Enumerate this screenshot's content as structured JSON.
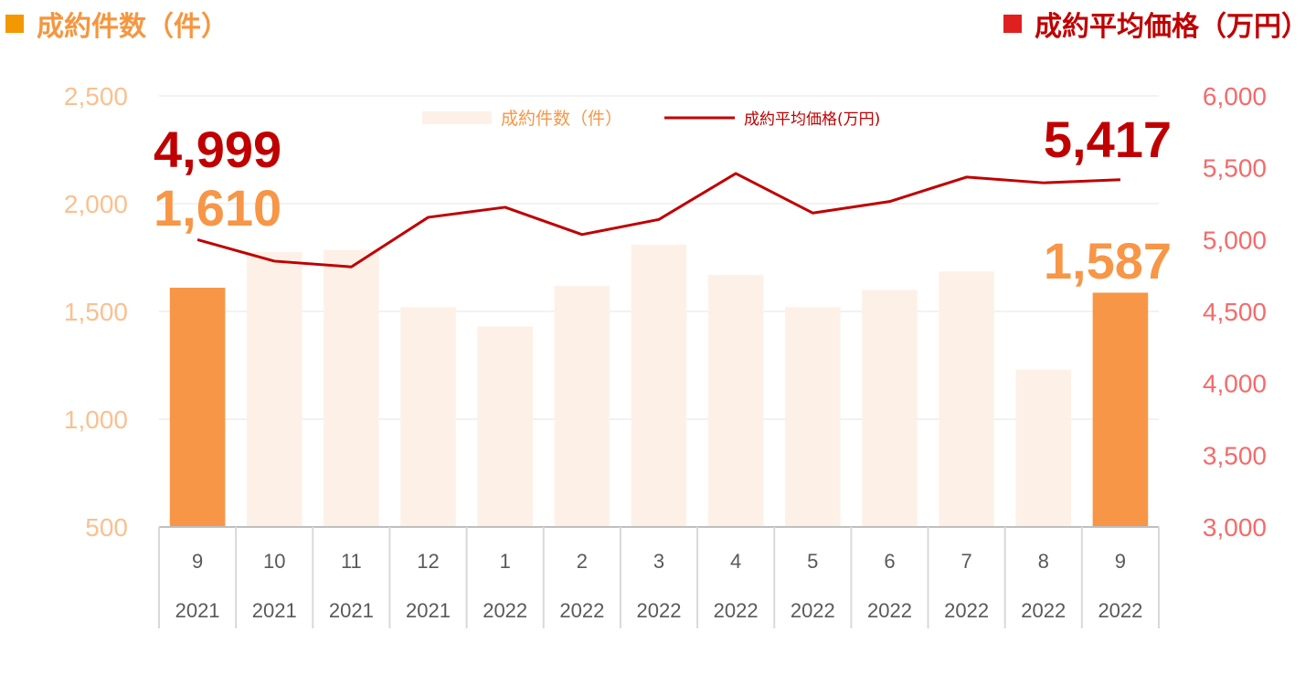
{
  "colors": {
    "count_accent": "#F39800",
    "count_title": "#F5963F",
    "count_bar_highlight": "#F79646",
    "count_bar_muted": "#FDF1E7",
    "count_axis": "#FAC090",
    "count_label": "#F79646",
    "price_line": "#C00000",
    "price_title_square": "#E02020",
    "price_title": "#C00000",
    "price_axis": "#F46B6B",
    "price_label": "#C00000",
    "grid": "#E6E6E6",
    "x_text": "#595959"
  },
  "titles": {
    "left": "成約件数（件）",
    "right": "成約平均価格（万円）"
  },
  "chart_data": {
    "type": "bar+line",
    "categories": [
      {
        "month": "9",
        "year": "2021"
      },
      {
        "month": "10",
        "year": "2021"
      },
      {
        "month": "11",
        "year": "2021"
      },
      {
        "month": "12",
        "year": "2021"
      },
      {
        "month": "1",
        "year": "2022"
      },
      {
        "month": "2",
        "year": "2022"
      },
      {
        "month": "3",
        "year": "2022"
      },
      {
        "month": "4",
        "year": "2022"
      },
      {
        "month": "5",
        "year": "2022"
      },
      {
        "month": "6",
        "year": "2022"
      },
      {
        "month": "7",
        "year": "2022"
      },
      {
        "month": "8",
        "year": "2022"
      },
      {
        "month": "9",
        "year": "2022"
      }
    ],
    "series": [
      {
        "name": "成約件数（件）",
        "type": "bar",
        "axis": "left",
        "values": [
          1610,
          1775,
          1785,
          1520,
          1430,
          1618,
          1810,
          1670,
          1520,
          1600,
          1685,
          1230,
          1587
        ],
        "highlight": [
          0,
          12
        ]
      },
      {
        "name": "成約平均価格(万円)",
        "type": "line",
        "axis": "right",
        "values": [
          4999,
          4850,
          4810,
          5155,
          5225,
          5035,
          5140,
          5460,
          5185,
          5265,
          5435,
          5395,
          5417
        ]
      }
    ],
    "left_axis": {
      "min": 500,
      "max": 2500,
      "ticks": [
        "500",
        "1,000",
        "1,500",
        "2,000",
        "2,500"
      ]
    },
    "right_axis": {
      "min": 3000,
      "max": 6000,
      "ticks": [
        "3,000",
        "3,500",
        "4,000",
        "4,500",
        "5,000",
        "5,500",
        "6,000"
      ]
    },
    "grid": true,
    "legend_position": "top-center",
    "labels": {
      "first_price": "4,999",
      "last_price": "5,417",
      "first_count": "1,610",
      "last_count": "1,587"
    }
  }
}
